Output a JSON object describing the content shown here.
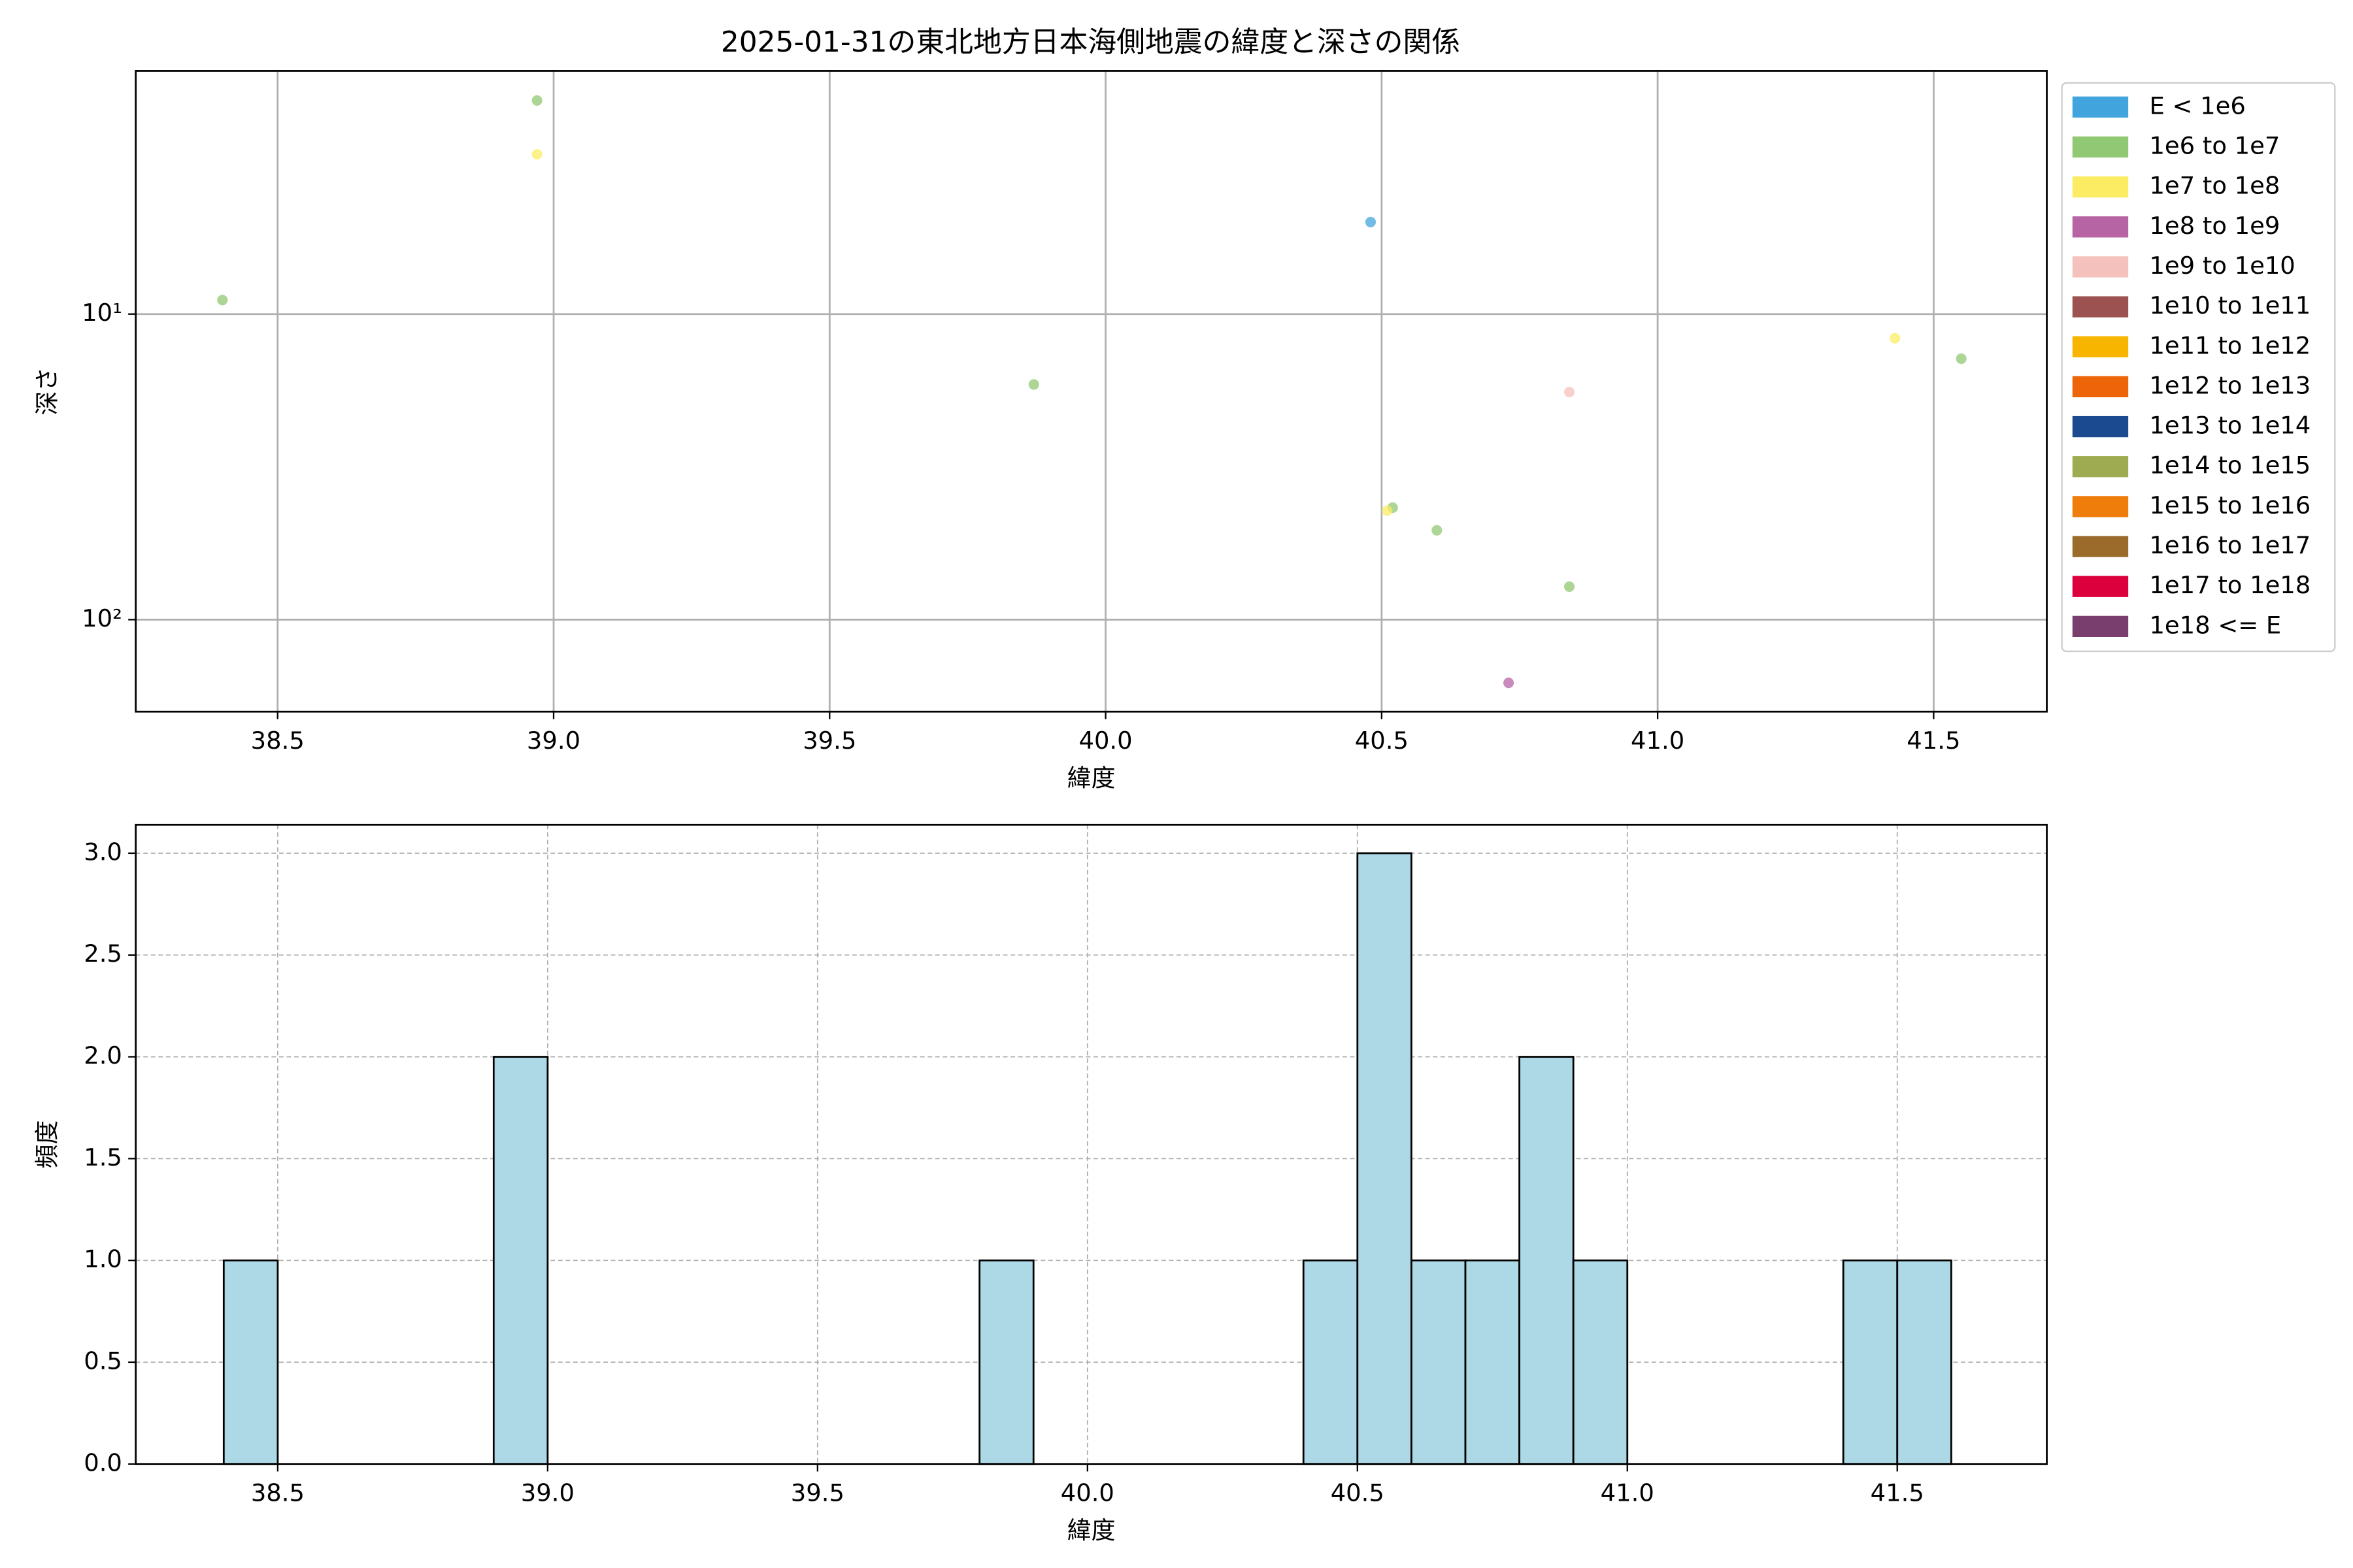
{
  "chart_data": [
    {
      "type": "scatter",
      "title": "2025-01-31の東北地方日本海側地震の緯度と深さの関係",
      "x_label": "緯度",
      "y_label": "深さ",
      "yscale": "log",
      "grid": true,
      "legend": "outside right",
      "xlim": [
        38.243,
        41.705
      ],
      "ylim": [
        200,
        1.6
      ],
      "xticks": [
        38.5,
        {
          "value": 39,
          "label": "39.0"
        },
        39.5,
        {
          "value": 40,
          "label": "40.0"
        },
        40.5,
        {
          "value": 41,
          "label": "41.0"
        },
        41.5
      ],
      "yticks": [
        {
          "value": 10,
          "label": "10¹"
        },
        {
          "value": 100,
          "label": "10²"
        }
      ],
      "series": [
        {
          "name": "E < 1e6",
          "color": "#41a4dc",
          "x": [
            40.48
          ],
          "y": [
            5
          ]
        },
        {
          "name": "1e6 to 1e7",
          "color": "#91c873",
          "x": [
            38.4,
            38.97,
            39.87,
            41.55,
            40.52,
            40.6,
            40.84
          ],
          "y": [
            9,
            2,
            17,
            14,
            43,
            51,
            78
          ]
        },
        {
          "name": "1e7 to 1e8",
          "color": "#fcec64",
          "x": [
            38.97,
            41.43,
            40.51
          ],
          "y": [
            3,
            12,
            44
          ]
        },
        {
          "name": "1e8 to 1e9",
          "color": "#b764a4",
          "x": [
            40.73
          ],
          "y": [
            161
          ]
        },
        {
          "name": "1e9 to 1e10",
          "color": "#f5c1bc",
          "x": [
            40.84
          ],
          "y": [
            18
          ]
        },
        {
          "name": "1e10 to 1e11",
          "color": "#9b5250",
          "x": [],
          "y": []
        },
        {
          "name": "1e11 to 1e12",
          "color": "#f7b500",
          "x": [],
          "y": []
        },
        {
          "name": "1e12 to 1e13",
          "color": "#ee6408",
          "x": [],
          "y": []
        },
        {
          "name": "1e13 to 1e14",
          "color": "#1c4a90",
          "x": [],
          "y": []
        },
        {
          "name": "1e14 to 1e15",
          "color": "#9eab50",
          "x": [],
          "y": []
        },
        {
          "name": "1e15 to 1e16",
          "color": "#ef7d0c",
          "x": [],
          "y": []
        },
        {
          "name": "1e16 to 1e17",
          "color": "#9a6b2b",
          "x": [],
          "y": []
        },
        {
          "name": "1e17 to 1e18",
          "color": "#dc003c",
          "x": [],
          "y": []
        },
        {
          "name": "1e18 <= E",
          "color": "#7a3e6e",
          "x": [],
          "y": []
        }
      ]
    },
    {
      "type": "histogram",
      "x_label": "緯度",
      "y_label": "頻度",
      "color": "#add8e6",
      "grid": true,
      "xlim": [
        38.237,
        41.777
      ],
      "ylim": [
        0,
        3.14
      ],
      "xticks": [
        38.5,
        {
          "value": 39,
          "label": "39.0"
        },
        39.5,
        {
          "value": 40,
          "label": "40.0"
        },
        40.5,
        {
          "value": 41,
          "label": "41.0"
        },
        41.5
      ],
      "yticks": [
        {
          "value": 0,
          "label": "0.0"
        },
        0.5,
        {
          "value": 1,
          "label": "1.0"
        },
        1.5,
        {
          "value": 2,
          "label": "2.0"
        },
        2.5,
        {
          "value": 3,
          "label": "3.0"
        }
      ],
      "bins": [
        38.4,
        38.5,
        38.6,
        38.7,
        38.8,
        38.9,
        39.0,
        39.1,
        39.2,
        39.3,
        39.4,
        39.5,
        39.6,
        39.7,
        39.8,
        39.9,
        40.0,
        40.1,
        40.2,
        40.3,
        40.4,
        40.5,
        40.6,
        40.7,
        40.8,
        40.9,
        41.0,
        41.1,
        41.2,
        41.3,
        41.4,
        41.5,
        41.6
      ],
      "counts": [
        1,
        0,
        0,
        0,
        0,
        2,
        0,
        0,
        0,
        0,
        0,
        0,
        0,
        0,
        1,
        0,
        0,
        0,
        0,
        0,
        1,
        3,
        1,
        1,
        2,
        1,
        0,
        0,
        0,
        0,
        1,
        1
      ]
    }
  ]
}
